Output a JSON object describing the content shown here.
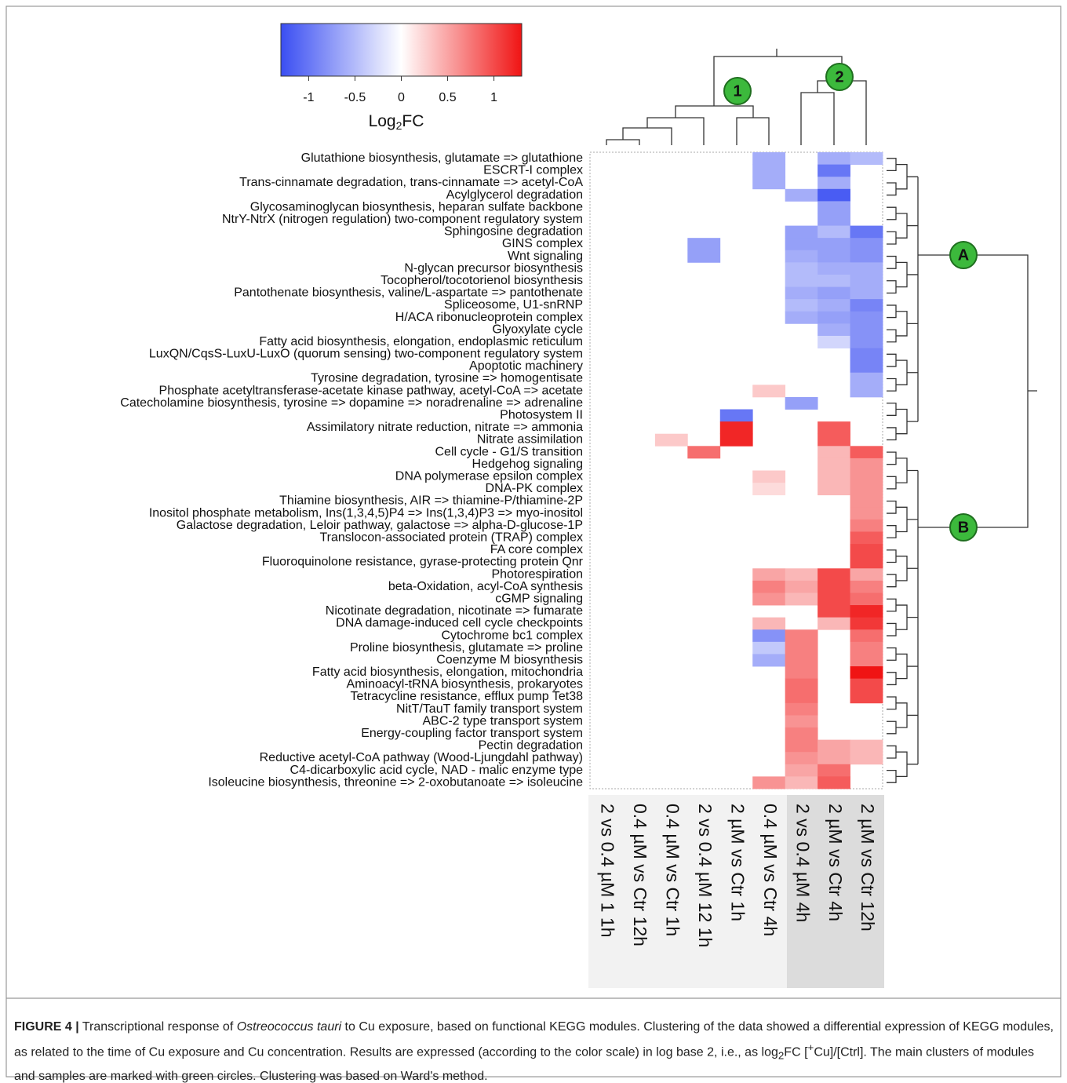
{
  "chart_data": {
    "type": "heatmap",
    "colorbar_title": [
      "Log",
      "2",
      "FC"
    ],
    "colorbar_lim": [
      -1.3,
      1.3
    ],
    "colorbar_ticks": [
      -1,
      -0.5,
      0,
      0.5,
      1
    ],
    "colorbar_colors": [
      "#3a4ef2",
      "#ffffff",
      "#f01414"
    ],
    "column_cluster_labels": [
      "1",
      "2"
    ],
    "row_cluster_labels": [
      "A",
      "B"
    ],
    "columns": [
      "2 vs 0.4 µM 1 1h",
      "0.4 µM vs Ctr 12h",
      "0.4 µM vs Ctr 1h",
      "2 vs 0.4 µM 12 1h",
      "2 µM vs Ctr 1h",
      "0.4 µM vs Ctr 4h",
      "2 vs 0.4 µM 4h",
      "2 µM vs Ctr 4h",
      "2 µM vs Ctr 12h"
    ],
    "rows": [
      "Glutathione biosynthesis, glutamate => glutathione",
      "ESCRT-I complex",
      "Trans-cinnamate degradation, trans-cinnamate => acetyl-CoA",
      "Acylglycerol degradation",
      "Glycosaminoglycan biosynthesis, heparan sulfate backbone",
      "NtrY-NtrX (nitrogen regulation) two-component regulatory system",
      "Sphingosine degradation",
      "GINS complex",
      "Wnt signaling",
      "N-glycan precursor biosynthesis",
      "Tocopherol/tocotorienol biosynthesis",
      "Pantothenate biosynthesis, valine/L-aspartate => pantothenate",
      "Spliceosome, U1-snRNP",
      "H/ACA ribonucleoprotein complex",
      "Glyoxylate cycle",
      "Fatty acid biosynthesis, elongation, endoplasmic reticulum",
      "LuxQN/CqsS-LuxU-LuxO (quorum sensing) two-component regulatory system",
      "Apoptotic machinery",
      "Tyrosine degradation, tyrosine => homogentisate",
      "Phosphate acetyltransferase-acetate kinase pathway, acetyl-CoA => acetate",
      "Catecholamine biosynthesis, tyrosine => dopamine => noradrenaline => adrenaline",
      "Photosystem II",
      "Assimilatory nitrate reduction, nitrate => ammonia",
      "Nitrate assimilation",
      "Cell cycle - G1/S transition",
      "Hedgehog signaling",
      "DNA polymerase epsilon complex",
      "DNA-PK complex",
      "Thiamine biosynthesis, AIR => thiamine-P/thiamine-2P",
      "Inositol phosphate metabolism, Ins(1,3,4,5)P4 => Ins(1,3,4)P3 => myo-inositol",
      "Galactose degradation, Leloir pathway, galactose => alpha-D-glucose-1P",
      "Translocon-associated protein (TRAP) complex",
      "FA core complex",
      "Fluoroquinolone resistance, gyrase-protecting protein Qnr",
      "Photorespiration",
      "beta-Oxidation, acyl-CoA synthesis",
      "cGMP signaling",
      "Nicotinate degradation, nicotinate => fumarate",
      "DNA damage-induced cell cycle checkpoints",
      "Cytochrome bc1 complex",
      "Proline biosynthesis, glutamate => proline",
      "Coenzyme M biosynthesis",
      "Fatty acid biosynthesis, elongation, mitochondria",
      "Aminoacyl-tRNA biosynthesis, prokaryotes",
      "Tetracycline resistance, efflux pump Tet38",
      "NitT/TauT family transport system",
      "ABC-2 type transport system",
      "Energy-coupling factor transport system",
      "Pectin degradation",
      "Reductive acetyl-CoA pathway (Wood-Ljungdahl pathway)",
      "C4-dicarboxylic acid cycle, NAD - malic enzyme type",
      "Isoleucine biosynthesis, threonine => 2-oxobutanoate => isoleucine"
    ],
    "values": [
      [
        null,
        null,
        null,
        null,
        null,
        -0.6,
        null,
        -0.6,
        -0.5
      ],
      [
        null,
        null,
        null,
        null,
        null,
        -0.6,
        null,
        -1.0,
        null
      ],
      [
        null,
        null,
        null,
        null,
        null,
        -0.6,
        null,
        -0.6,
        null
      ],
      [
        null,
        null,
        null,
        null,
        null,
        null,
        -0.6,
        -1.2,
        null
      ],
      [
        null,
        null,
        null,
        null,
        null,
        null,
        null,
        -0.7,
        null
      ],
      [
        null,
        null,
        null,
        null,
        null,
        null,
        null,
        -0.7,
        null
      ],
      [
        null,
        null,
        null,
        null,
        null,
        null,
        -0.7,
        -0.5,
        -1.0
      ],
      [
        null,
        null,
        null,
        -0.7,
        null,
        null,
        -0.7,
        -0.7,
        -0.8
      ],
      [
        null,
        null,
        null,
        -0.7,
        null,
        null,
        -0.6,
        -0.7,
        -0.8
      ],
      [
        null,
        null,
        null,
        null,
        null,
        null,
        -0.5,
        -0.6,
        -0.6
      ],
      [
        null,
        null,
        null,
        null,
        null,
        null,
        -0.5,
        -0.5,
        -0.6
      ],
      [
        null,
        null,
        null,
        null,
        null,
        null,
        -0.6,
        -0.7,
        -0.6
      ],
      [
        null,
        null,
        null,
        null,
        null,
        null,
        -0.5,
        -0.6,
        -0.9
      ],
      [
        null,
        null,
        null,
        null,
        null,
        null,
        -0.6,
        -0.7,
        -0.8
      ],
      [
        null,
        null,
        null,
        null,
        null,
        null,
        null,
        -0.6,
        -0.8
      ],
      [
        null,
        null,
        null,
        null,
        null,
        null,
        null,
        -0.3,
        -0.8
      ],
      [
        null,
        null,
        null,
        null,
        null,
        null,
        null,
        null,
        -0.9
      ],
      [
        null,
        null,
        null,
        null,
        null,
        null,
        null,
        null,
        -0.9
      ],
      [
        null,
        null,
        null,
        null,
        null,
        null,
        null,
        null,
        -0.6
      ],
      [
        null,
        null,
        null,
        null,
        null,
        0.3,
        null,
        null,
        -0.6
      ],
      [
        null,
        null,
        null,
        null,
        null,
        null,
        -0.7,
        null,
        null
      ],
      [
        null,
        null,
        null,
        null,
        -1.0,
        null,
        null,
        null,
        null
      ],
      [
        null,
        null,
        null,
        null,
        1.2,
        null,
        null,
        0.9,
        null
      ],
      [
        null,
        null,
        0.3,
        null,
        1.2,
        null,
        null,
        0.9,
        null
      ],
      [
        null,
        null,
        null,
        0.8,
        null,
        null,
        null,
        0.4,
        0.9
      ],
      [
        null,
        null,
        null,
        null,
        null,
        null,
        null,
        0.4,
        0.6
      ],
      [
        null,
        null,
        null,
        null,
        null,
        0.3,
        null,
        0.4,
        0.6
      ],
      [
        null,
        null,
        null,
        null,
        null,
        0.2,
        null,
        0.4,
        0.6
      ],
      [
        null,
        null,
        null,
        null,
        null,
        null,
        null,
        null,
        0.6
      ],
      [
        null,
        null,
        null,
        null,
        null,
        null,
        null,
        null,
        0.6
      ],
      [
        null,
        null,
        null,
        null,
        null,
        null,
        null,
        null,
        0.7
      ],
      [
        null,
        null,
        null,
        null,
        null,
        null,
        null,
        null,
        0.9
      ],
      [
        null,
        null,
        null,
        null,
        null,
        null,
        null,
        null,
        1.0
      ],
      [
        null,
        null,
        null,
        null,
        null,
        null,
        null,
        null,
        1.0
      ],
      [
        null,
        null,
        null,
        null,
        null,
        0.5,
        0.4,
        1.0,
        0.5
      ],
      [
        null,
        null,
        null,
        null,
        null,
        0.7,
        0.5,
        1.0,
        0.7
      ],
      [
        null,
        null,
        null,
        null,
        null,
        0.6,
        0.4,
        1.0,
        0.8
      ],
      [
        null,
        null,
        null,
        null,
        null,
        null,
        null,
        1.0,
        1.2
      ],
      [
        null,
        null,
        null,
        null,
        null,
        0.4,
        null,
        0.4,
        1.1
      ],
      [
        null,
        null,
        null,
        null,
        null,
        -0.8,
        0.7,
        null,
        0.8
      ],
      [
        null,
        null,
        null,
        null,
        null,
        -0.4,
        0.7,
        null,
        0.7
      ],
      [
        null,
        null,
        null,
        null,
        null,
        -0.6,
        0.7,
        null,
        0.7
      ],
      [
        null,
        null,
        null,
        null,
        null,
        null,
        0.7,
        null,
        1.3
      ],
      [
        null,
        null,
        null,
        null,
        null,
        null,
        0.8,
        null,
        1.0
      ],
      [
        null,
        null,
        null,
        null,
        null,
        null,
        0.8,
        null,
        1.0
      ],
      [
        null,
        null,
        null,
        null,
        null,
        null,
        0.7,
        null,
        null
      ],
      [
        null,
        null,
        null,
        null,
        null,
        null,
        0.6,
        null,
        null
      ],
      [
        null,
        null,
        null,
        null,
        null,
        null,
        0.7,
        null,
        null
      ],
      [
        null,
        null,
        null,
        null,
        null,
        null,
        0.7,
        0.5,
        0.4
      ],
      [
        null,
        null,
        null,
        null,
        null,
        null,
        0.6,
        0.5,
        0.4
      ],
      [
        null,
        null,
        null,
        null,
        null,
        null,
        0.5,
        0.8,
        null
      ],
      [
        null,
        null,
        null,
        null,
        null,
        0.6,
        0.4,
        0.9,
        null
      ]
    ]
  },
  "caption": {
    "label": "FIGURE 4 |",
    "parts": [
      " Transcriptional response of ",
      "Ostreococcus tauri",
      " to Cu exposure, based on functional KEGG modules. Clustering of the data showed a differential expression of KEGG modules, as related to the time of Cu exposure and Cu concentration. Results are expressed (according to the color scale) in log base 2, i.e., as ",
      "log",
      "2",
      "FC [",
      "+",
      "Cu]/[Ctrl]. The main clusters of modules and samples are marked with green circles. Clustering was based on Ward's method."
    ]
  }
}
